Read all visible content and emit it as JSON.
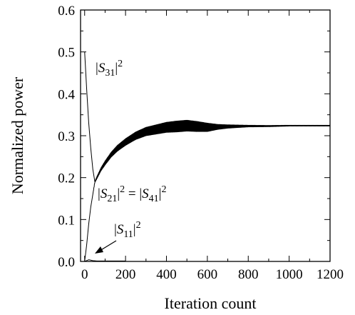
{
  "chart_data": {
    "type": "line",
    "title": "",
    "xlabel": "Iteration count",
    "ylabel": "Normalized power",
    "xlim": [
      -20,
      1200
    ],
    "ylim": [
      0,
      0.6
    ],
    "xticks": [
      0,
      200,
      400,
      600,
      800,
      1000,
      1200
    ],
    "yticks": [
      0.0,
      0.1,
      0.2,
      0.3,
      0.4,
      0.5,
      0.6
    ],
    "xtick_labels": [
      "0",
      "200",
      "400",
      "600",
      "800",
      "1000",
      "1200"
    ],
    "ytick_labels": [
      "0.0",
      "0.1",
      "0.2",
      "0.3",
      "0.4",
      "0.5",
      "0.6"
    ],
    "grid": false,
    "legend": "none",
    "series": [
      {
        "x": [
          0,
          10,
          20,
          30,
          40,
          50
        ],
        "y": [
          0.5,
          0.41,
          0.33,
          0.27,
          0.22,
          0.19
        ]
      },
      {
        "x": [
          0,
          10,
          20,
          30,
          40,
          50,
          60,
          80,
          100,
          130,
          160,
          200,
          250,
          300,
          350,
          400,
          450,
          500,
          550,
          600,
          650,
          700,
          800,
          900,
          1000,
          1100,
          1200
        ],
        "y": [
          0.0,
          0.04,
          0.09,
          0.13,
          0.16,
          0.19,
          0.2,
          0.22,
          0.235,
          0.255,
          0.27,
          0.285,
          0.3,
          0.31,
          0.315,
          0.32,
          0.322,
          0.324,
          0.322,
          0.32,
          0.321,
          0.322,
          0.323,
          0.323,
          0.324,
          0.324,
          0.324
        ],
        "noise": [
          0,
          0,
          0,
          0,
          0,
          0.002,
          0.003,
          0.004,
          0.005,
          0.006,
          0.007,
          0.008,
          0.009,
          0.01,
          0.011,
          0.012,
          0.013,
          0.013,
          0.012,
          0.01,
          0.006,
          0.004,
          0.002,
          0.0015,
          0.001,
          0.001,
          0.001
        ]
      },
      {
        "x": [
          0,
          10,
          20,
          30,
          40,
          60,
          200
        ],
        "y": [
          0.0,
          0.002,
          0.004,
          0.003,
          0.002,
          0.001,
          0.001
        ]
      }
    ],
    "annotations": {
      "s31": {
        "prefix": "|",
        "sym": "S",
        "sub": "31",
        "suffix": "|",
        "sup": "2"
      },
      "s21": {
        "prefix": "|",
        "sym": "S",
        "sub": "21",
        "suffix": "|",
        "sup": "2"
      },
      "eq": " = ",
      "s41": {
        "prefix": "|",
        "sym": "S",
        "sub": "41",
        "suffix": "|",
        "sup": "2"
      },
      "s11": {
        "prefix": "|",
        "sym": "S",
        "sub": "11",
        "suffix": "|",
        "sup": "2"
      }
    }
  }
}
